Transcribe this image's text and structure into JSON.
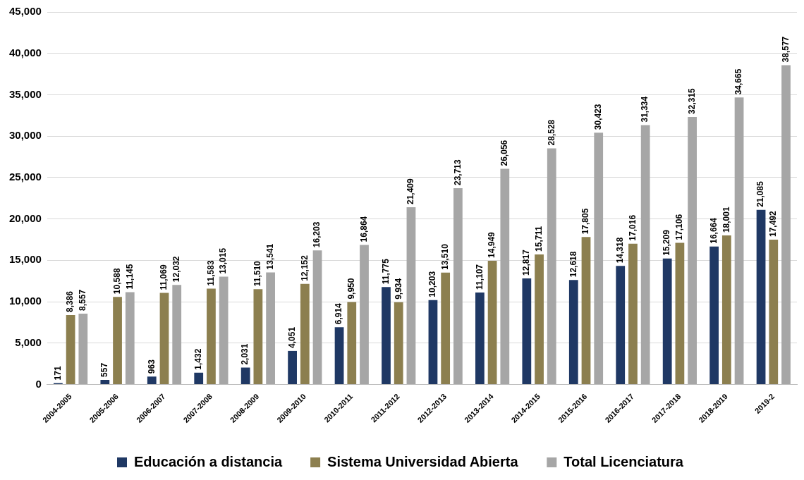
{
  "chart_data": {
    "type": "bar",
    "categories": [
      "2004-2005",
      "2005-2006",
      "2006-2007",
      "2007-2008",
      "2008-2009",
      "2009-2010",
      "2010-2011",
      "2011-2012",
      "2012-2013",
      "2013-2014",
      "2014-2015",
      "2015-2016",
      "2016-2017",
      "2017-2018",
      "2018-2019",
      "2019-2"
    ],
    "series": [
      {
        "name": "Educación a distancia",
        "color": "#1f3864",
        "values": [
          171,
          557,
          963,
          1432,
          2031,
          4051,
          6914,
          11775,
          10203,
          11107,
          12817,
          12618,
          14318,
          15209,
          16664,
          21085
        ],
        "value_labels": [
          "171",
          "557",
          "963",
          "1,432",
          "2,031",
          "4,051",
          "6,914",
          "11,775",
          "10,203",
          "11,107",
          "12,817",
          "12,618",
          "14,318",
          "15,209",
          "16,664",
          "21,085"
        ]
      },
      {
        "name": "Sistema Universidad Abierta",
        "color": "#8c7f4f",
        "values": [
          8386,
          10588,
          11069,
          11583,
          11510,
          12152,
          9950,
          9934,
          13510,
          14949,
          15711,
          17805,
          17016,
          17106,
          18001,
          17492
        ],
        "value_labels": [
          "8,386",
          "10,588",
          "11,069",
          "11,583",
          "11,510",
          "12,152",
          "9,950",
          "9,934",
          "13,510",
          "14,949",
          "15,711",
          "17,805",
          "17,016",
          "17,106",
          "18,001",
          "17,492"
        ]
      },
      {
        "name": "Total Licenciatura",
        "color": "#a6a6a6",
        "values": [
          8557,
          11145,
          12032,
          13015,
          13541,
          16203,
          16864,
          21409,
          23713,
          26056,
          28528,
          30423,
          31334,
          32315,
          34665,
          38577
        ],
        "value_labels": [
          "8,557",
          "11,145",
          "12,032",
          "13,015",
          "13,541",
          "16,203",
          "16,864",
          "21,409",
          "23,713",
          "26,056",
          "28,528",
          "30,423",
          "31,334",
          "32,315",
          "34,665",
          "38,577"
        ]
      }
    ],
    "ylim": [
      0,
      45000
    ],
    "yticks": [
      0,
      {
        "value": 5000,
        "label": "5,000"
      },
      {
        "value": 10000,
        "label": "10,000"
      },
      {
        "value": 15000,
        "label": "15,000"
      },
      {
        "value": 20000,
        "label": "20,000"
      },
      {
        "value": 25000,
        "label": "25,000"
      },
      {
        "value": 30000,
        "label": "30,000"
      },
      {
        "value": 35000,
        "label": "35,000"
      },
      {
        "value": 40000,
        "label": "40,000"
      },
      {
        "value": 45000,
        "label": "45,000"
      }
    ],
    "grid": "y",
    "legend": "bottom"
  }
}
